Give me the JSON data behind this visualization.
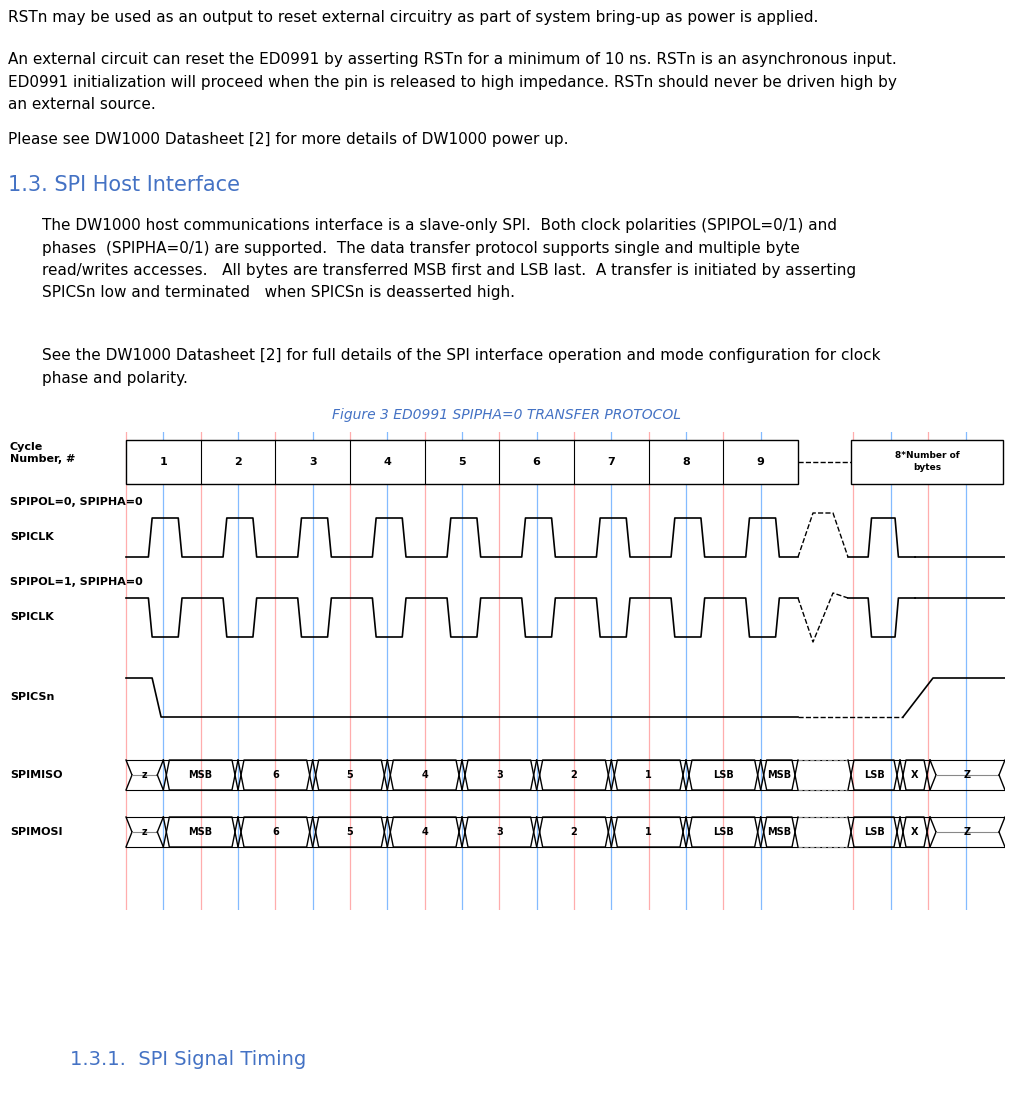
{
  "bg_color": "#ffffff",
  "text_color": "#000000",
  "heading_color": "#4472C4",
  "fig_caption_color": "#4472C4",
  "para1": "RSTn may be used as an output to reset external circuitry as part of system bring-up as power is applied.",
  "para2_lines": [
    "An external circuit can reset the ED0991 by asserting RSTn for a minimum of 10 ns. RSTn is an asynchronous input.",
    "ED0991 initialization will proceed when the pin is released to high impedance. RSTn should never be driven high by",
    "an external source."
  ],
  "para3": "Please see DW1000 Datasheet [2] for more details of DW1000 power up.",
  "heading1": "1.3. SPI Host Interface",
  "para4_lines": [
    "The DW1000 host communications interface is a slave-only SPI.  Both clock polarities (SPIPOL=0/1) and",
    "phases  (SPIPHA=0/1) are supported.  The data transfer protocol supports single and multiple byte",
    "read/writes accesses.   All bytes are transferred MSB first and LSB last.  A transfer is initiated by asserting",
    "SPICSn low and terminated   when SPICSn is deasserted high."
  ],
  "para5_lines": [
    "See the DW1000 Datasheet [2] for full details of the SPI interface operation and mode configuration for clock",
    "phase and polarity."
  ],
  "fig_caption": "Figure 3 ED0991 SPIPHA=0 TRANSFER PROTOCOL",
  "heading2": "1.3.1.  SPI Signal Timing",
  "red_line_color": "#FF9999",
  "blue_line_color": "#66AAFF",
  "text_font_size": 11,
  "heading1_font_size": 15,
  "heading2_font_size": 14,
  "fig_caption_font_size": 10,
  "diagram_label_font_size": 8,
  "cycle_num_font_size": 8
}
